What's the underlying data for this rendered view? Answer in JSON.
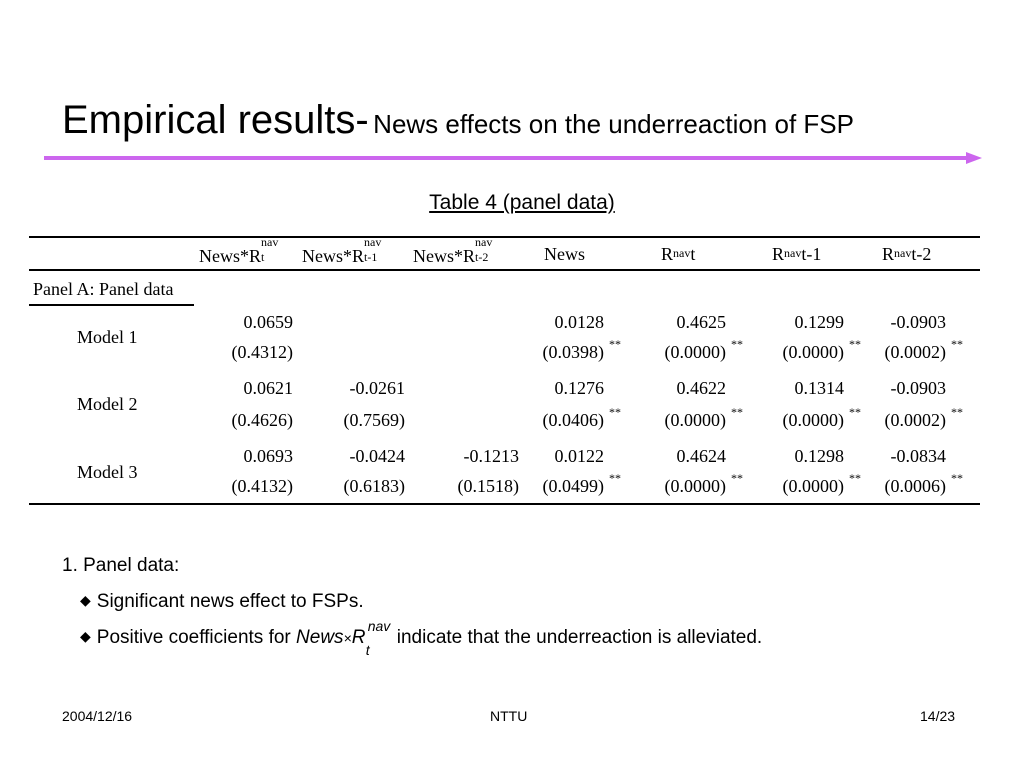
{
  "slide": {
    "title_main": "Empirical results-",
    "title_sub": "News effects on the underreaction of FSP",
    "table_caption": "Table 4 (panel data)"
  },
  "table": {
    "headers": [
      {
        "base": "News*R",
        "sup": "nav",
        "sub": "t"
      },
      {
        "base": "News*R",
        "sup": "nav",
        "sub": "t-1"
      },
      {
        "base": "News*R",
        "sup": "nav",
        "sub": "t-2"
      },
      {
        "base": "News"
      },
      {
        "base": "R",
        "sup": "nav",
        "tail": "t"
      },
      {
        "base": "R",
        "sup": "nav",
        "tail": "t-1"
      },
      {
        "base": "R",
        "sup": "nav",
        "tail": "t-2"
      }
    ],
    "panel_label": "Panel A: Panel data",
    "stars": "**",
    "rows": [
      {
        "label": "Model 1",
        "coef": [
          "0.0659",
          "",
          "",
          "0.0128",
          "0.4625",
          "0.1299",
          "-0.0903"
        ],
        "pval": [
          "(0.4312)",
          "",
          "",
          "(0.0398)",
          "(0.0000)",
          "(0.0000)",
          "(0.0002)"
        ],
        "star": [
          false,
          false,
          false,
          true,
          true,
          true,
          true
        ]
      },
      {
        "label": "Model 2",
        "coef": [
          "0.0621",
          "-0.0261",
          "",
          "0.1276",
          "0.4622",
          "0.1314",
          "-0.0903"
        ],
        "pval": [
          "(0.4626)",
          "(0.7569)",
          "",
          "(0.0406)",
          "(0.0000)",
          "(0.0000)",
          "(0.0002)"
        ],
        "star": [
          false,
          false,
          false,
          true,
          true,
          true,
          true
        ]
      },
      {
        "label": "Model 3",
        "coef": [
          "0.0693",
          "-0.0424",
          "-0.1213",
          "0.0122",
          "0.4624",
          "0.1298",
          "-0.0834"
        ],
        "pval": [
          "(0.4132)",
          "(0.6183)",
          "(0.1518)",
          "(0.0499)",
          "(0.0000)",
          "(0.0000)",
          "(0.0006)"
        ],
        "star": [
          false,
          false,
          false,
          true,
          true,
          true,
          true
        ]
      }
    ]
  },
  "notes": {
    "heading": "1. Panel data:",
    "bullet1": "Significant news effect to FSPs.",
    "bullet2_pre": "Positive coefficients for",
    "bullet2_news": "News",
    "bullet2_times": "×",
    "bullet2_r": "R",
    "bullet2_sup": "nav",
    "bullet2_sub": "t",
    "bullet2_post": "indicate that the underreaction is alleviated."
  },
  "footer": {
    "date": "2004/12/16",
    "center": "NTTU",
    "page": "14/23"
  },
  "colors": {
    "accent_line": "#cc66ee",
    "text": "#000000"
  }
}
